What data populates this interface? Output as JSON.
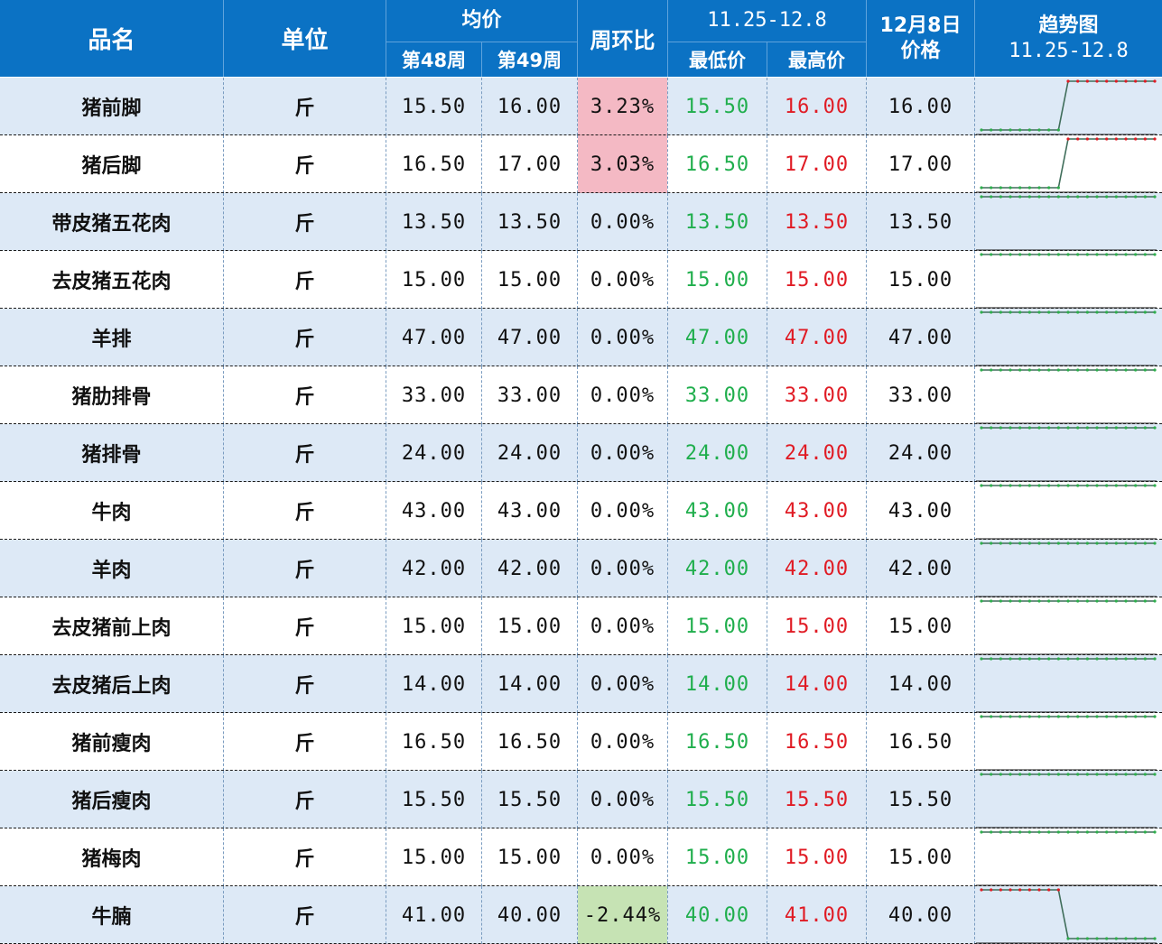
{
  "chart_data": {
    "type": "table",
    "columns": {
      "name": "品名",
      "unit": "单位",
      "avg_group": "均价",
      "week48": "第48周",
      "week49": "第49周",
      "wow": "周环比",
      "range_group": "11.25-12.8",
      "min": "最低价",
      "max": "最高价",
      "dec8_line1": "12月8日",
      "dec8_line2": "价格",
      "trend_line1": "趋势图",
      "trend_line2": "11.25-12.8"
    },
    "rows": [
      {
        "name": "猪前脚",
        "unit": "斤",
        "w48": "15.50",
        "w49": "16.00",
        "wow": "3.23%",
        "min": "15.50",
        "max": "16.00",
        "dec8": "16.00",
        "trend": [
          15.5,
          15.5,
          15.5,
          15.5,
          15.5,
          15.5,
          15.5,
          15.5,
          15.5,
          16,
          16,
          16,
          16,
          16,
          16,
          16,
          16,
          16,
          16
        ]
      },
      {
        "name": "猪后脚",
        "unit": "斤",
        "w48": "16.50",
        "w49": "17.00",
        "wow": "3.03%",
        "min": "16.50",
        "max": "17.00",
        "dec8": "17.00",
        "trend": [
          16.5,
          16.5,
          16.5,
          16.5,
          16.5,
          16.5,
          16.5,
          16.5,
          16.5,
          17,
          17,
          17,
          17,
          17,
          17,
          17,
          17,
          17,
          17
        ]
      },
      {
        "name": "带皮猪五花肉",
        "unit": "斤",
        "w48": "13.50",
        "w49": "13.50",
        "wow": "0.00%",
        "min": "13.50",
        "max": "13.50",
        "dec8": "13.50",
        "trend": [
          13.5,
          13.5,
          13.5,
          13.5,
          13.5,
          13.5,
          13.5,
          13.5,
          13.5,
          13.5,
          13.5,
          13.5,
          13.5,
          13.5,
          13.5,
          13.5,
          13.5,
          13.5,
          13.5
        ]
      },
      {
        "name": "去皮猪五花肉",
        "unit": "斤",
        "w48": "15.00",
        "w49": "15.00",
        "wow": "0.00%",
        "min": "15.00",
        "max": "15.00",
        "dec8": "15.00",
        "trend": [
          15,
          15,
          15,
          15,
          15,
          15,
          15,
          15,
          15,
          15,
          15,
          15,
          15,
          15,
          15,
          15,
          15,
          15,
          15
        ]
      },
      {
        "name": "羊排",
        "unit": "斤",
        "w48": "47.00",
        "w49": "47.00",
        "wow": "0.00%",
        "min": "47.00",
        "max": "47.00",
        "dec8": "47.00",
        "trend": [
          47,
          47,
          47,
          47,
          47,
          47,
          47,
          47,
          47,
          47,
          47,
          47,
          47,
          47,
          47,
          47,
          47,
          47,
          47
        ]
      },
      {
        "name": "猪肋排骨",
        "unit": "斤",
        "w48": "33.00",
        "w49": "33.00",
        "wow": "0.00%",
        "min": "33.00",
        "max": "33.00",
        "dec8": "33.00",
        "trend": [
          33,
          33,
          33,
          33,
          33,
          33,
          33,
          33,
          33,
          33,
          33,
          33,
          33,
          33,
          33,
          33,
          33,
          33,
          33
        ]
      },
      {
        "name": "猪排骨",
        "unit": "斤",
        "w48": "24.00",
        "w49": "24.00",
        "wow": "0.00%",
        "min": "24.00",
        "max": "24.00",
        "dec8": "24.00",
        "trend": [
          24,
          24,
          24,
          24,
          24,
          24,
          24,
          24,
          24,
          24,
          24,
          24,
          24,
          24,
          24,
          24,
          24,
          24,
          24
        ]
      },
      {
        "name": "牛肉",
        "unit": "斤",
        "w48": "43.00",
        "w49": "43.00",
        "wow": "0.00%",
        "min": "43.00",
        "max": "43.00",
        "dec8": "43.00",
        "trend": [
          43,
          43,
          43,
          43,
          43,
          43,
          43,
          43,
          43,
          43,
          43,
          43,
          43,
          43,
          43,
          43,
          43,
          43,
          43
        ]
      },
      {
        "name": "羊肉",
        "unit": "斤",
        "w48": "42.00",
        "w49": "42.00",
        "wow": "0.00%",
        "min": "42.00",
        "max": "42.00",
        "dec8": "42.00",
        "trend": [
          42,
          42,
          42,
          42,
          42,
          42,
          42,
          42,
          42,
          42,
          42,
          42,
          42,
          42,
          42,
          42,
          42,
          42,
          42
        ]
      },
      {
        "name": "去皮猪前上肉",
        "unit": "斤",
        "w48": "15.00",
        "w49": "15.00",
        "wow": "0.00%",
        "min": "15.00",
        "max": "15.00",
        "dec8": "15.00",
        "trend": [
          15,
          15,
          15,
          15,
          15,
          15,
          15,
          15,
          15,
          15,
          15,
          15,
          15,
          15,
          15,
          15,
          15,
          15,
          15
        ]
      },
      {
        "name": "去皮猪后上肉",
        "unit": "斤",
        "w48": "14.00",
        "w49": "14.00",
        "wow": "0.00%",
        "min": "14.00",
        "max": "14.00",
        "dec8": "14.00",
        "trend": [
          14,
          14,
          14,
          14,
          14,
          14,
          14,
          14,
          14,
          14,
          14,
          14,
          14,
          14,
          14,
          14,
          14,
          14,
          14
        ]
      },
      {
        "name": "猪前瘦肉",
        "unit": "斤",
        "w48": "16.50",
        "w49": "16.50",
        "wow": "0.00%",
        "min": "16.50",
        "max": "16.50",
        "dec8": "16.50",
        "trend": [
          16.5,
          16.5,
          16.5,
          16.5,
          16.5,
          16.5,
          16.5,
          16.5,
          16.5,
          16.5,
          16.5,
          16.5,
          16.5,
          16.5,
          16.5,
          16.5,
          16.5,
          16.5,
          16.5
        ]
      },
      {
        "name": "猪后瘦肉",
        "unit": "斤",
        "w48": "15.50",
        "w49": "15.50",
        "wow": "0.00%",
        "min": "15.50",
        "max": "15.50",
        "dec8": "15.50",
        "trend": [
          15.5,
          15.5,
          15.5,
          15.5,
          15.5,
          15.5,
          15.5,
          15.5,
          15.5,
          15.5,
          15.5,
          15.5,
          15.5,
          15.5,
          15.5,
          15.5,
          15.5,
          15.5,
          15.5
        ]
      },
      {
        "name": "猪梅肉",
        "unit": "斤",
        "w48": "15.00",
        "w49": "15.00",
        "wow": "0.00%",
        "min": "15.00",
        "max": "15.00",
        "dec8": "15.00",
        "trend": [
          15,
          15,
          15,
          15,
          15,
          15,
          15,
          15,
          15,
          15,
          15,
          15,
          15,
          15,
          15,
          15,
          15,
          15,
          15
        ]
      },
      {
        "name": "牛腩",
        "unit": "斤",
        "w48": "41.00",
        "w49": "40.00",
        "wow": "-2.44%",
        "min": "40.00",
        "max": "41.00",
        "dec8": "40.00",
        "trend": [
          41,
          41,
          41,
          41,
          41,
          41,
          41,
          41,
          41,
          40,
          40,
          40,
          40,
          40,
          40,
          40,
          40,
          40,
          40
        ]
      }
    ]
  },
  "colors": {
    "header_bg": "#0b72c4",
    "alt_row_bg": "#dde9f6",
    "low_text": "#1fae4c",
    "high_text": "#e01b24",
    "increase_bg": "#f4b9c4",
    "decrease_bg": "#c6e3b4",
    "trend_line": "#2e8b57",
    "trend_up_marker": "#e01b24",
    "trend_flat_marker": "#2eae4c"
  }
}
